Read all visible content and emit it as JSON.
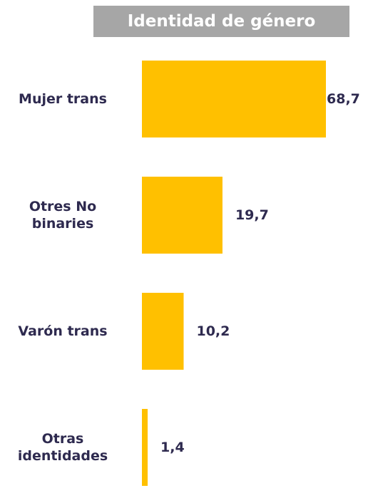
{
  "chart_data": {
    "type": "barh",
    "title": "Identidad de género",
    "categories": [
      "Mujer trans",
      "Otres No binaries",
      "Varón trans",
      "Otras identidades"
    ],
    "values": [
      68.7,
      19.7,
      10.2,
      1.4
    ],
    "value_labels": [
      "68,7",
      "19,7",
      "10,2",
      "1,4"
    ],
    "color": "#ffc000",
    "xlim": [
      0,
      45
    ]
  }
}
